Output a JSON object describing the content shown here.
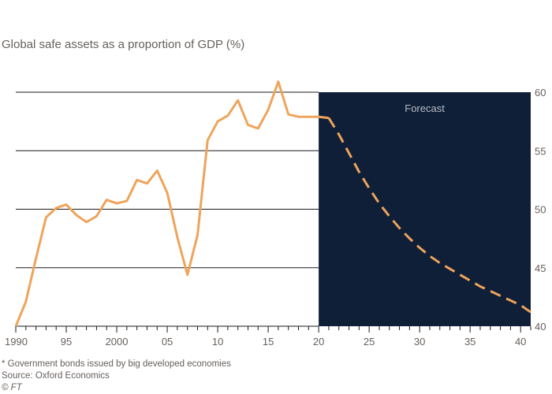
{
  "chart_data": {
    "type": "line",
    "title": "Global safe assets as a proportion of GDP (%)",
    "xlabel": "",
    "ylabel": "",
    "xlim": [
      1990,
      2041
    ],
    "ylim": [
      40,
      60
    ],
    "y_ticks": [
      40,
      45,
      50,
      55,
      60
    ],
    "y_axis_position": "right",
    "x_ticks": [
      1990,
      1995,
      2000,
      2005,
      2010,
      2015,
      2020,
      2025,
      2030,
      2035,
      2040
    ],
    "x_tick_labels": [
      "1990",
      "95",
      "2000",
      "05",
      "10",
      "15",
      "20",
      "25",
      "30",
      "35",
      "40"
    ],
    "grid": "horizontal",
    "forecast_region": {
      "start": 2020,
      "label": "Forecast"
    },
    "series": [
      {
        "style": "solid",
        "x": [
          1990,
          1991,
          1992,
          1993,
          1994,
          1995,
          1996,
          1997,
          1998,
          1999,
          2000,
          2001,
          2002,
          2003,
          2004,
          2005,
          2006,
          2007,
          2008,
          2009,
          2010,
          2011,
          2012,
          2013,
          2014,
          2015,
          2016,
          2017,
          2018,
          2019,
          2020,
          2021
        ],
        "values": [
          40.0,
          42.1,
          45.8,
          49.3,
          50.1,
          50.4,
          49.5,
          48.9,
          49.4,
          50.8,
          50.5,
          50.7,
          52.5,
          52.2,
          53.3,
          51.4,
          47.6,
          44.4,
          47.8,
          55.9,
          57.5,
          58.0,
          59.3,
          57.2,
          56.9,
          58.5,
          60.9,
          58.1,
          57.9,
          57.9,
          57.9,
          57.8
        ]
      },
      {
        "style": "dashed",
        "x": [
          2021,
          2022,
          2023,
          2024,
          2025,
          2026,
          2027,
          2028,
          2029,
          2030,
          2031,
          2032,
          2033,
          2034,
          2035,
          2036,
          2037,
          2038,
          2039,
          2040,
          2041
        ],
        "values": [
          57.8,
          56.4,
          54.8,
          53.2,
          51.8,
          50.5,
          49.4,
          48.4,
          47.5,
          46.7,
          46.0,
          45.4,
          44.9,
          44.4,
          43.9,
          43.4,
          43.0,
          42.6,
          42.2,
          41.8,
          41.2
        ]
      }
    ],
    "line_color": "#eea45b",
    "forecast_bg_color": "#0f1f38"
  },
  "footnotes": {
    "note": "* Government bonds issued by big developed economies",
    "source": "Source: Oxford Economics",
    "copyright": "© FT"
  }
}
